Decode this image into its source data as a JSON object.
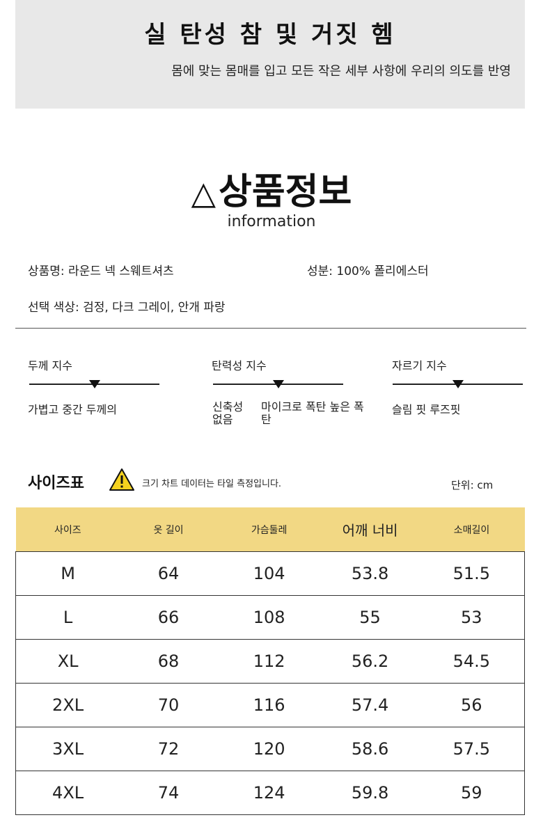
{
  "banner": {
    "title": "실 탄성 참 및 거짓 헴",
    "subtitle": "몸에 맞는 몸매를 입고 모든 작은 세부 사항에 우리의 의도를 반영"
  },
  "section": {
    "icon": "triangle-icon",
    "title": "상품정보",
    "subtitle": "information"
  },
  "info": {
    "product_name": "상품명: 라운드 넥 스웨트셔츠",
    "material": "성분: 100% 폴리에스터",
    "colors": "선택 색상: 검정, 다크 그레이, 안개 파랑"
  },
  "indices": [
    {
      "label": "두께 지수",
      "values": [
        "가볍고 중간 두께의"
      ],
      "level": 0.5
    },
    {
      "label": "탄력성 지수",
      "values": [
        "신축성 없음",
        "마이크로 폭탄 높은 폭탄"
      ],
      "level": 0.5
    },
    {
      "label": "자르기 지수",
      "values": [
        "슬림 핏 루즈핏"
      ],
      "level": 0.5
    }
  ],
  "size_chart": {
    "title": "사이즈표",
    "warning_icon": "warning-icon",
    "note": "크기 차트 데이터는 타일 측정입니다.",
    "unit": "단위: cm",
    "header_color": "#f2d884",
    "columns": [
      "사이즈",
      "옷 길이",
      "가슴둘레",
      "어깨 너비",
      "소매길이"
    ],
    "rows": [
      [
        "M",
        "64",
        "104",
        "53.8",
        "51.5"
      ],
      [
        "L",
        "66",
        "108",
        "55",
        "53"
      ],
      [
        "XL",
        "68",
        "112",
        "56.2",
        "54.5"
      ],
      [
        "2XL",
        "70",
        "116",
        "57.4",
        "56"
      ],
      [
        "3XL",
        "72",
        "120",
        "58.6",
        "57.5"
      ],
      [
        "4XL",
        "74",
        "124",
        "59.8",
        "59"
      ]
    ]
  }
}
